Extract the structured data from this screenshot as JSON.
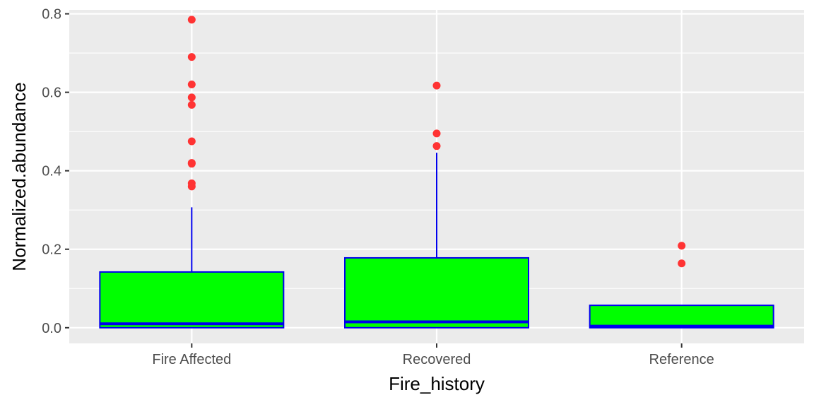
{
  "chart_data": {
    "type": "box",
    "title": "",
    "xlabel": "Fire_history",
    "ylabel": "Normalized.abundance",
    "categories": [
      "Fire Affected",
      "Recovered",
      "Reference"
    ],
    "ylim": [
      -0.04,
      0.81
    ],
    "yticks": [
      0.0,
      0.2,
      0.4,
      0.6,
      0.8
    ],
    "ytick_labels": [
      "0.0",
      "0.2",
      "0.4",
      "0.6",
      "0.8"
    ],
    "grid": true,
    "boxes": [
      {
        "category": "Fire Affected",
        "min": 0.0,
        "q1": 0.0,
        "median": 0.01,
        "q3": 0.142,
        "max": 0.307,
        "outliers": [
          0.785,
          0.69,
          0.62,
          0.587,
          0.568,
          0.475,
          0.42,
          0.418,
          0.368,
          0.36
        ]
      },
      {
        "category": "Recovered",
        "min": 0.0,
        "q1": 0.0,
        "median": 0.015,
        "q3": 0.178,
        "max": 0.446,
        "outliers": [
          0.617,
          0.495,
          0.463
        ]
      },
      {
        "category": "Reference",
        "min": 0.0,
        "q1": 0.0,
        "median": 0.004,
        "q3": 0.057,
        "max": 0.057,
        "outliers": [
          0.209,
          0.164
        ]
      }
    ],
    "colors": {
      "box_fill": "#00ff00",
      "box_line": "#0000ee",
      "outlier": "#ff3333",
      "panel": "#ebebeb",
      "grid": "#ffffff"
    }
  }
}
